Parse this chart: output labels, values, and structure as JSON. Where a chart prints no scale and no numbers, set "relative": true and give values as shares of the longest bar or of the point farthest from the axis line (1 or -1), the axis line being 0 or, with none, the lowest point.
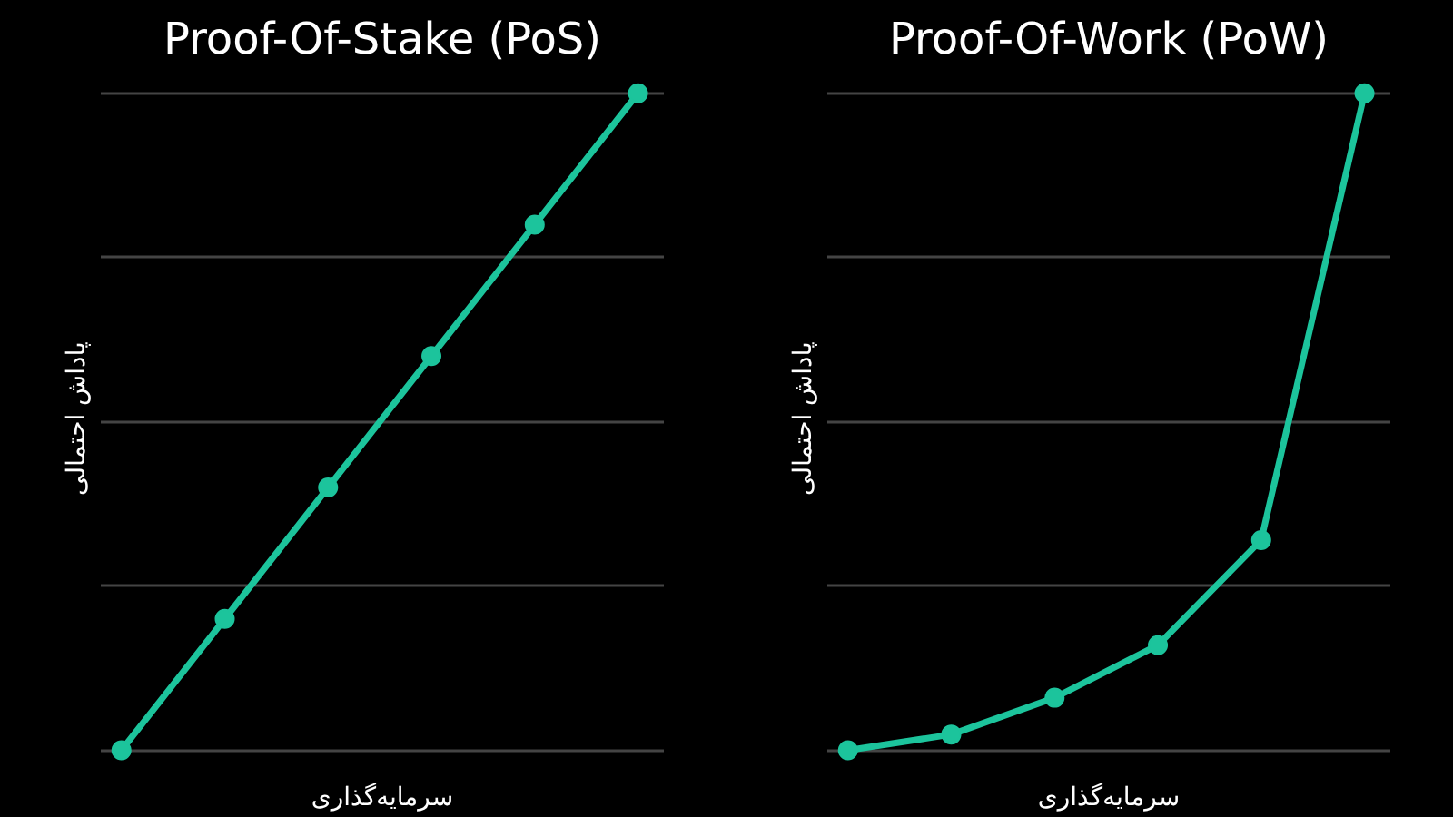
{
  "chart_data": [
    {
      "type": "line",
      "title": "Proof-Of-Stake (PoS)",
      "xlabel": "سرمایه‌گذاری",
      "ylabel": "پاداش احتمالی",
      "relative": true,
      "categories": [
        null,
        null,
        null,
        null,
        null,
        null
      ],
      "grid": "y",
      "marker": "circle",
      "line_style": "solid",
      "series": [
        {
          "color": "#1cc49c",
          "values": [
            0,
            0.2,
            0.4,
            0.6,
            0.8,
            1
          ]
        }
      ]
    },
    {
      "type": "line",
      "title": "Proof-Of-Work (PoW)",
      "xlabel": "سرمایه‌گذاری",
      "ylabel": "پاداش احتمالی",
      "relative": true,
      "categories": [
        null,
        null,
        null,
        null,
        null,
        null
      ],
      "grid": "y",
      "marker": "circle",
      "line_style": "solid",
      "series": [
        {
          "color": "#1cc49c",
          "values": [
            0,
            0.024,
            0.08,
            0.16,
            0.32,
            1
          ]
        }
      ]
    }
  ]
}
